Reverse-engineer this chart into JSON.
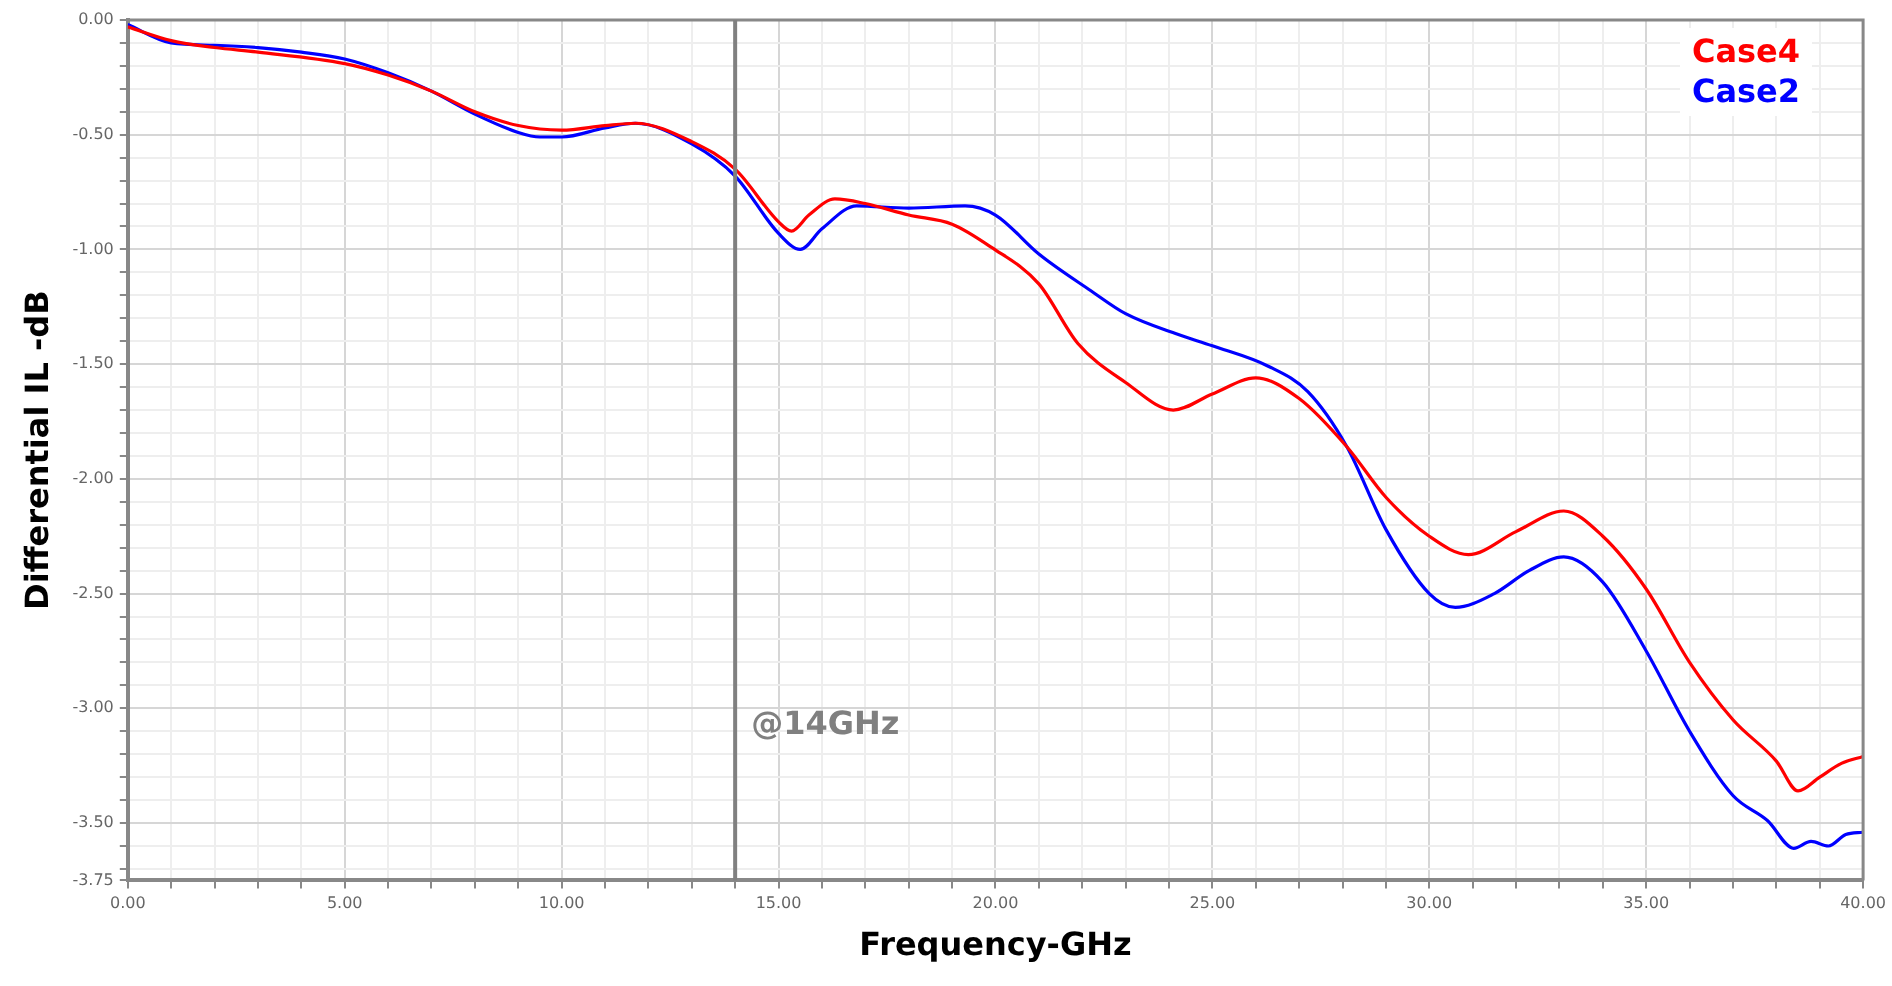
{
  "chart_data": {
    "type": "line",
    "xlabel": "Frequency-GHz",
    "ylabel": "Differential IL -dB",
    "xlim": [
      0,
      40
    ],
    "ylim": [
      -3.75,
      0
    ],
    "xticks": [
      {
        "value": 0,
        "label": "0.00"
      },
      {
        "value": 1,
        "label": null
      },
      {
        "value": 2,
        "label": null
      },
      {
        "value": 3,
        "label": null
      },
      {
        "value": 4,
        "label": null
      },
      {
        "value": 5,
        "label": "5.00"
      },
      {
        "value": 6,
        "label": null
      },
      {
        "value": 7,
        "label": null
      },
      {
        "value": 8,
        "label": null
      },
      {
        "value": 9,
        "label": null
      },
      {
        "value": 10,
        "label": "10.00"
      },
      {
        "value": 11,
        "label": null
      },
      {
        "value": 12,
        "label": null
      },
      {
        "value": 13,
        "label": null
      },
      {
        "value": 14,
        "label": null
      },
      {
        "value": 15,
        "label": "15.00"
      },
      {
        "value": 16,
        "label": null
      },
      {
        "value": 17,
        "label": null
      },
      {
        "value": 18,
        "label": null
      },
      {
        "value": 19,
        "label": null
      },
      {
        "value": 20,
        "label": "20.00"
      },
      {
        "value": 21,
        "label": null
      },
      {
        "value": 22,
        "label": null
      },
      {
        "value": 23,
        "label": null
      },
      {
        "value": 24,
        "label": null
      },
      {
        "value": 25,
        "label": "25.00"
      },
      {
        "value": 26,
        "label": null
      },
      {
        "value": 27,
        "label": null
      },
      {
        "value": 28,
        "label": null
      },
      {
        "value": 29,
        "label": null
      },
      {
        "value": 30,
        "label": "30.00"
      },
      {
        "value": 31,
        "label": null
      },
      {
        "value": 32,
        "label": null
      },
      {
        "value": 33,
        "label": null
      },
      {
        "value": 34,
        "label": null
      },
      {
        "value": 35,
        "label": "35.00"
      },
      {
        "value": 36,
        "label": null
      },
      {
        "value": 37,
        "label": null
      },
      {
        "value": 38,
        "label": null
      },
      {
        "value": 39,
        "label": null
      },
      {
        "value": 40,
        "label": "40.00"
      }
    ],
    "yticks": [
      {
        "value": 0,
        "label": "0.00"
      },
      {
        "value": -0.1,
        "label": null
      },
      {
        "value": -0.2,
        "label": null
      },
      {
        "value": -0.3,
        "label": null
      },
      {
        "value": -0.4,
        "label": null
      },
      {
        "value": -0.5,
        "label": "-0.50"
      },
      {
        "value": -0.6,
        "label": null
      },
      {
        "value": -0.7,
        "label": null
      },
      {
        "value": -0.8,
        "label": null
      },
      {
        "value": -0.9,
        "label": null
      },
      {
        "value": -1,
        "label": "-1.00"
      },
      {
        "value": -1.1,
        "label": null
      },
      {
        "value": -1.2,
        "label": null
      },
      {
        "value": -1.3,
        "label": null
      },
      {
        "value": -1.4,
        "label": null
      },
      {
        "value": -1.5,
        "label": "-1.50"
      },
      {
        "value": -1.6,
        "label": null
      },
      {
        "value": -1.7,
        "label": null
      },
      {
        "value": -1.8,
        "label": null
      },
      {
        "value": -1.9,
        "label": null
      },
      {
        "value": -2,
        "label": "-2.00"
      },
      {
        "value": -2.1,
        "label": null
      },
      {
        "value": -2.2,
        "label": null
      },
      {
        "value": -2.3,
        "label": null
      },
      {
        "value": -2.4,
        "label": null
      },
      {
        "value": -2.5,
        "label": "-2.50"
      },
      {
        "value": -2.6,
        "label": null
      },
      {
        "value": -2.7,
        "label": null
      },
      {
        "value": -2.8,
        "label": null
      },
      {
        "value": -2.9,
        "label": null
      },
      {
        "value": -3,
        "label": "-3.00"
      },
      {
        "value": -3.1,
        "label": null
      },
      {
        "value": -3.2,
        "label": null
      },
      {
        "value": -3.3,
        "label": null
      },
      {
        "value": -3.4,
        "label": null
      },
      {
        "value": -3.5,
        "label": "-3.50"
      },
      {
        "value": -3.6,
        "label": null
      },
      {
        "value": -3.7,
        "label": null
      },
      {
        "value": -3.75,
        "label": "-3.75"
      }
    ],
    "grid": true,
    "legend": "top right",
    "marker": "none",
    "line_style": "solid",
    "ref_lines": [
      {
        "axis": "x",
        "value": 14,
        "label": "@14GHz",
        "color": "#808080"
      }
    ],
    "series": [
      {
        "name": "Case4",
        "color": "#ff0000",
        "x": [
          0,
          1,
          2,
          3,
          5,
          6,
          7,
          8,
          9,
          10,
          11,
          11.7,
          13,
          14,
          15,
          15.3,
          15.7,
          16.3,
          17,
          18,
          19,
          19.9,
          21,
          21.9,
          23,
          24.1,
          25,
          26,
          27,
          28.1,
          29,
          30,
          30.9,
          32,
          33.1,
          34,
          35,
          36,
          37,
          38,
          38.5,
          39,
          39.5,
          40
        ],
        "values": [
          -0.03,
          -0.09,
          -0.12,
          -0.14,
          -0.19,
          -0.24,
          -0.31,
          -0.4,
          -0.46,
          -0.48,
          -0.46,
          -0.45,
          -0.53,
          -0.65,
          -0.88,
          -0.92,
          -0.85,
          -0.78,
          -0.8,
          -0.85,
          -0.89,
          -0.99,
          -1.15,
          -1.41,
          -1.58,
          -1.7,
          -1.63,
          -1.56,
          -1.65,
          -1.86,
          -2.08,
          -2.25,
          -2.33,
          -2.23,
          -2.14,
          -2.25,
          -2.48,
          -2.8,
          -3.05,
          -3.23,
          -3.36,
          -3.3,
          -3.24,
          -3.21
        ]
      },
      {
        "name": "Case2",
        "color": "#0000ff",
        "x": [
          0,
          1,
          2,
          3,
          4,
          5,
          6,
          7,
          8,
          9,
          9.5,
          10,
          11,
          11.7,
          13,
          14,
          15,
          15.5,
          16,
          16.8,
          18,
          19.3,
          20,
          21,
          22.2,
          23,
          24.2,
          25,
          26.3,
          27.2,
          28.1,
          29,
          30,
          30.6,
          31.5,
          32.3,
          33.1,
          34,
          35,
          36,
          37,
          37.8,
          38.4,
          38.8,
          39.2,
          39.6,
          40
        ],
        "values": [
          -0.02,
          -0.1,
          -0.11,
          -0.12,
          -0.14,
          -0.17,
          -0.23,
          -0.31,
          -0.41,
          -0.49,
          -0.51,
          -0.51,
          -0.47,
          -0.45,
          -0.54,
          -0.68,
          -0.93,
          -1,
          -0.91,
          -0.81,
          -0.82,
          -0.81,
          -0.85,
          -1.02,
          -1.18,
          -1.28,
          -1.37,
          -1.42,
          -1.51,
          -1.62,
          -1.86,
          -2.22,
          -2.5,
          -2.56,
          -2.5,
          -2.4,
          -2.34,
          -2.45,
          -2.75,
          -3.1,
          -3.38,
          -3.49,
          -3.61,
          -3.58,
          -3.6,
          -3.55,
          -3.54
        ]
      }
    ]
  }
}
